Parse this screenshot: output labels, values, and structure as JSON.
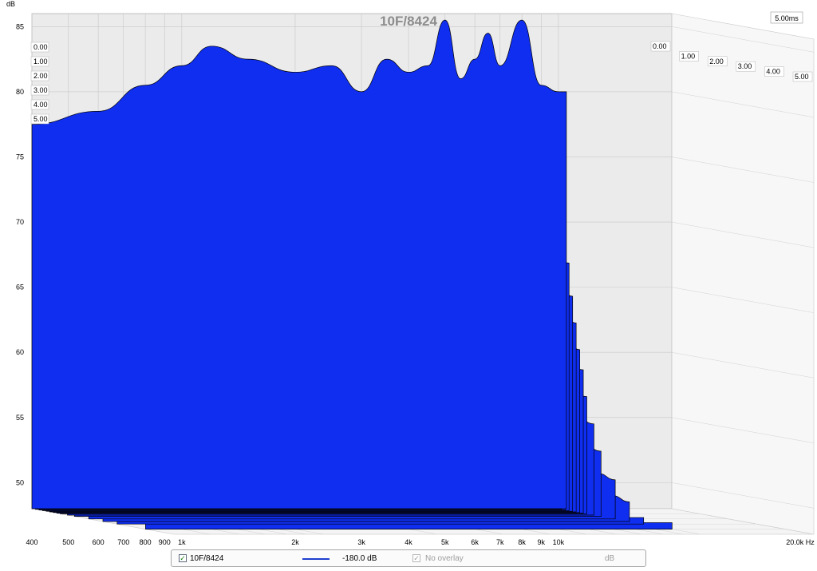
{
  "chart_data": {
    "type": "area",
    "subtype": "cumulative-spectral-decay",
    "title": "10F/8424",
    "ylabel": "dB",
    "xunit": "Hz",
    "xscale": "log",
    "xlim": [
      400,
      20000
    ],
    "ylim": [
      48,
      86
    ],
    "x_ticks": [
      {
        "value": 400,
        "label": "400"
      },
      {
        "value": 500,
        "label": "500"
      },
      {
        "value": 600,
        "label": "600"
      },
      {
        "value": 700,
        "label": "700"
      },
      {
        "value": 800,
        "label": "800"
      },
      {
        "value": 900,
        "label": "900"
      },
      {
        "value": 1000,
        "label": "1k"
      },
      {
        "value": 2000,
        "label": "2k"
      },
      {
        "value": 3000,
        "label": "3k"
      },
      {
        "value": 4000,
        "label": "4k"
      },
      {
        "value": 5000,
        "label": "5k"
      },
      {
        "value": 6000,
        "label": "6k"
      },
      {
        "value": 7000,
        "label": "7k"
      },
      {
        "value": 8000,
        "label": "8k"
      },
      {
        "value": 9000,
        "label": "9k"
      },
      {
        "value": 10000,
        "label": "10k"
      },
      {
        "value": 20000,
        "label": "20.0k Hz"
      }
    ],
    "y_ticks": [
      {
        "value": 50,
        "label": "50"
      },
      {
        "value": 55,
        "label": "55"
      },
      {
        "value": 60,
        "label": "60"
      },
      {
        "value": 65,
        "label": "65"
      },
      {
        "value": 70,
        "label": "70"
      },
      {
        "value": 75,
        "label": "75"
      },
      {
        "value": 80,
        "label": "80"
      },
      {
        "value": 85,
        "label": "85"
      }
    ],
    "time_slices_ms": [
      "0.00",
      "1.00",
      "2.00",
      "3.00",
      "4.00",
      "5.00"
    ],
    "time_end_label": "5.00ms",
    "grid": true,
    "fill_color": "#0f2ef0",
    "outline_color": "#000000",
    "series": [
      {
        "t": 0.0,
        "x": [
          400,
          600,
          800,
          1000,
          1200,
          1500,
          2000,
          2500,
          3000,
          3500,
          4000,
          4500,
          5000,
          5500,
          6000,
          6500,
          7000,
          8000,
          9000,
          10000,
          10500
        ],
        "values": [
          77.5,
          78.5,
          80.5,
          82.0,
          83.5,
          82.5,
          81.5,
          82.0,
          80.0,
          82.5,
          81.5,
          82.0,
          85.5,
          81.0,
          82.5,
          84.5,
          82.0,
          85.5,
          80.5,
          80.0,
          80.0
        ]
      },
      {
        "t": 0.125,
        "x": [
          400,
          600,
          800,
          1000,
          1200,
          1500,
          2000,
          2500,
          3000,
          3500,
          4000,
          5000,
          6000,
          7000,
          8000,
          9000,
          10000
        ],
        "values": [
          77.0,
          78.0,
          79.5,
          80.0,
          79.0,
          78.5,
          77.5,
          76.5,
          75.5,
          76.5,
          75.0,
          76.5,
          74.5,
          75.5,
          76.0,
          73.0,
          72.5
        ]
      },
      {
        "t": 0.25,
        "x": [
          400,
          600,
          800,
          1000,
          1200,
          1500,
          2000,
          2500,
          3000,
          3500,
          4000,
          5000,
          6000,
          7000,
          8000,
          9000,
          10000
        ],
        "values": [
          75.0,
          76.0,
          76.5,
          75.5,
          75.0,
          73.5,
          72.0,
          71.0,
          70.5,
          72.0,
          71.5,
          72.0,
          73.5,
          72.0,
          73.5,
          70.5,
          70.0
        ]
      },
      {
        "t": 0.375,
        "x": [
          400,
          600,
          800,
          1000,
          1200,
          1500,
          2000,
          2500,
          3000,
          3500,
          4000,
          5000,
          6000,
          7000,
          8000,
          9000,
          10000
        ],
        "values": [
          71.0,
          72.5,
          71.5,
          70.5,
          70.0,
          69.0,
          68.0,
          67.5,
          67.5,
          69.0,
          67.0,
          69.5,
          71.0,
          68.5,
          70.0,
          68.0,
          67.0
        ]
      },
      {
        "t": 0.5,
        "x": [
          400,
          600,
          800,
          1000,
          1200,
          1500,
          2000,
          2500,
          3000,
          3500,
          4000,
          5000,
          6000,
          7000,
          8000,
          9000,
          10000
        ],
        "values": [
          68.0,
          69.0,
          68.0,
          67.5,
          66.5,
          66.0,
          65.0,
          65.5,
          65.0,
          66.0,
          65.0,
          67.0,
          68.0,
          66.0,
          67.5,
          65.5,
          64.5
        ]
      },
      {
        "t": 0.625,
        "x": [
          400,
          600,
          800,
          1000,
          1200,
          1500,
          2000,
          2500,
          3000,
          3500,
          4000,
          5000,
          6000,
          7000,
          8000,
          9000,
          10000
        ],
        "values": [
          66.0,
          67.0,
          66.0,
          65.0,
          64.5,
          64.0,
          63.5,
          64.0,
          63.5,
          64.5,
          63.0,
          65.0,
          65.5,
          64.0,
          65.0,
          63.5,
          62.5
        ]
      },
      {
        "t": 0.75,
        "x": [
          400,
          600,
          800,
          1000,
          1200,
          1500,
          2000,
          2500,
          3000,
          3500,
          4000,
          5000,
          6000,
          7000,
          8000,
          9000,
          10000
        ],
        "values": [
          64.0,
          64.5,
          64.0,
          63.0,
          62.5,
          62.5,
          62.0,
          62.5,
          61.5,
          62.5,
          61.5,
          63.0,
          63.0,
          62.0,
          62.5,
          61.5,
          60.5
        ]
      },
      {
        "t": 0.875,
        "x": [
          400,
          600,
          800,
          1000,
          1200,
          1500,
          2000,
          2500,
          3000,
          3500,
          4000,
          5000,
          6000,
          7000,
          8000,
          9000,
          10000
        ],
        "values": [
          62.5,
          62.5,
          62.0,
          61.0,
          60.5,
          61.0,
          60.0,
          61.0,
          60.0,
          60.5,
          60.0,
          61.0,
          61.0,
          60.0,
          60.5,
          59.5,
          59.0
        ]
      },
      {
        "t": 1.0,
        "x": [
          400,
          600,
          800,
          1000,
          1200,
          1500,
          2000,
          2500,
          3000,
          3500,
          4000,
          5000,
          6000,
          7000,
          8000,
          9000,
          10000
        ],
        "values": [
          61.0,
          60.5,
          60.0,
          59.5,
          59.0,
          59.0,
          58.5,
          59.0,
          58.0,
          58.5,
          58.0,
          58.5,
          58.5,
          58.0,
          58.0,
          57.5,
          57.0
        ]
      },
      {
        "t": 1.25,
        "x": [
          400,
          600,
          800,
          1000,
          1200,
          1500,
          2000,
          2500,
          3000,
          3500,
          4000,
          5000,
          6000,
          7000,
          8000,
          9000,
          10000
        ],
        "values": [
          59.0,
          59.5,
          58.5,
          58.0,
          57.5,
          57.0,
          56.5,
          57.5,
          56.5,
          56.5,
          56.0,
          56.5,
          56.0,
          56.0,
          55.5,
          55.5,
          55.0
        ]
      },
      {
        "t": 1.5,
        "x": [
          400,
          600,
          800,
          1000,
          1200,
          1500,
          2000,
          2500,
          3000,
          3500,
          4000,
          5000,
          6000,
          7000,
          8000,
          9000,
          10000
        ],
        "values": [
          57.5,
          58.5,
          57.5,
          56.5,
          56.0,
          55.5,
          55.0,
          55.5,
          55.0,
          54.5,
          54.0,
          54.5,
          54.0,
          54.0,
          53.5,
          53.5,
          53.0
        ]
      },
      {
        "t": 2.0,
        "x": [
          400,
          600,
          800,
          1000,
          1200,
          1500,
          2000,
          2500,
          3000,
          3500,
          4000,
          5000,
          6000,
          7000,
          8000,
          9000,
          10000
        ],
        "values": [
          55.5,
          56.5,
          56.0,
          55.0,
          54.5,
          53.5,
          53.0,
          53.5,
          53.0,
          52.5,
          52.0,
          52.5,
          52.0,
          52.0,
          51.5,
          51.5,
          51.0
        ]
      },
      {
        "t": 2.5,
        "x": [
          400,
          600,
          800,
          1000,
          1200,
          1500,
          2000,
          2500,
          3000,
          3500,
          4000,
          5000,
          6000,
          7000,
          8000,
          9000,
          10000
        ],
        "values": [
          53.5,
          55.0,
          54.5,
          53.5,
          53.0,
          52.0,
          51.5,
          52.0,
          51.5,
          51.0,
          50.5,
          51.0,
          50.5,
          50.5,
          50.0,
          50.0,
          49.5
        ]
      },
      {
        "t": 3.0,
        "x": [
          400,
          600,
          800,
          1000,
          1200,
          1500,
          2000,
          2500,
          3000,
          3500,
          4000,
          5000,
          6000,
          7000,
          8000,
          9000,
          10000
        ],
        "values": [
          52.0,
          53.5,
          53.0,
          52.0,
          51.5,
          50.5,
          50.0,
          50.5,
          50.0,
          49.5,
          49.0,
          49.5,
          49.0,
          49.0,
          48.5,
          48.5,
          48.5
        ]
      },
      {
        "t": 4.0,
        "x": [
          400,
          600,
          800,
          1000,
          1200,
          1500,
          2000,
          2500,
          3000,
          3500,
          4000,
          5000,
          6000,
          7000,
          8000,
          9000,
          10000
        ],
        "values": [
          50.5,
          51.5,
          51.5,
          50.5,
          50.0,
          49.5,
          49.0,
          49.5,
          49.0,
          48.5,
          48.5,
          48.5,
          48.5,
          48.5,
          48.5,
          48.5,
          48.5
        ]
      }
    ]
  },
  "legend": {
    "checked_mark": "✓",
    "trace_name": "10F/8424",
    "trace_color": "#1f3fd0",
    "level": "-180.0 dB",
    "overlay_label": "No overlay",
    "unit": "dB"
  }
}
